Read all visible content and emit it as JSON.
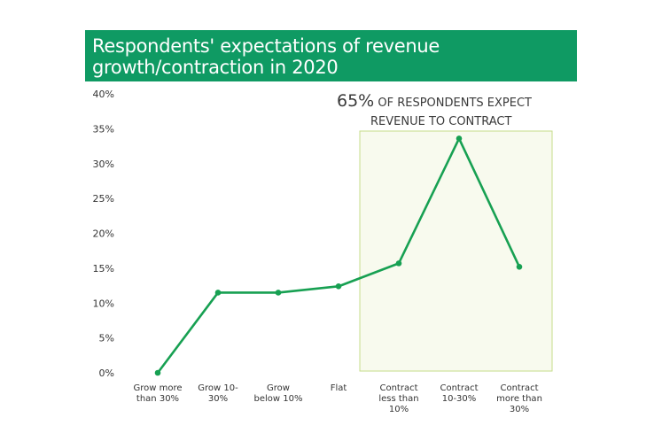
{
  "title": {
    "line1": "Respondents' expectations of revenue",
    "line2": "growth/contraction in 2020"
  },
  "callout": {
    "percent": "65%",
    "text_line1": "OF RESPONDENTS EXPECT",
    "text_line2": "REVENUE TO CONTRACT"
  },
  "colors": {
    "title_bg": "#0f9a63",
    "line": "#17a052",
    "highlight_fill": "#f8faee",
    "highlight_border": "#c6dc8a"
  },
  "chart_data": {
    "type": "line",
    "categories": [
      [
        "Grow more",
        "than 30%"
      ],
      [
        "Grow 10-",
        "30%"
      ],
      [
        "Grow",
        "below 10%"
      ],
      [
        "Flat"
      ],
      [
        "Contract",
        "less than",
        "10%"
      ],
      [
        "Contract",
        "10-30%"
      ],
      [
        "Contract",
        "more than",
        "30%"
      ]
    ],
    "values": [
      0,
      11.5,
      11.5,
      12.4,
      15.7,
      33.6,
      15.2
    ],
    "ylim": [
      0,
      40
    ],
    "yticks": [
      "0%",
      "5%",
      "10%",
      "15%",
      "20%",
      "25%",
      "30%",
      "35%",
      "40%"
    ],
    "grid": false,
    "highlight_range": [
      "Contract less than 10%",
      "Contract more than 30%"
    ]
  }
}
